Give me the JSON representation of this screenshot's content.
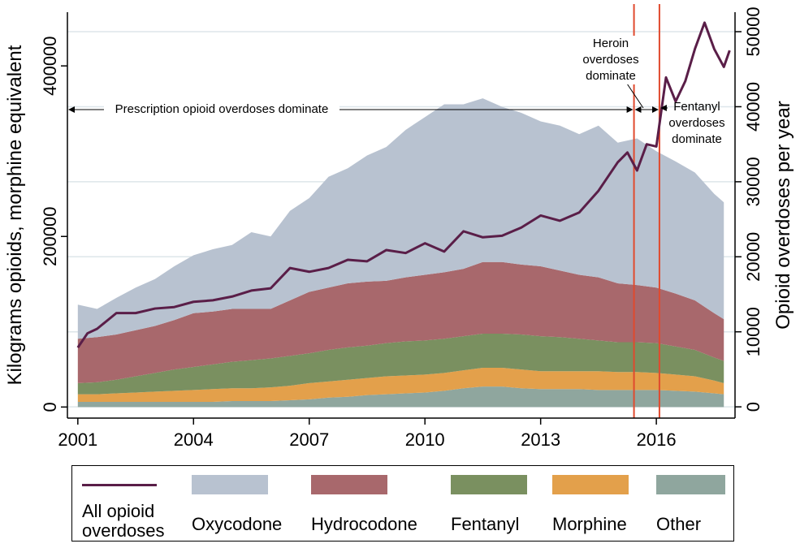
{
  "chart_data": {
    "type": "area",
    "y_label": "Kilograms opioids, morphine equivalent",
    "y2_label": "Opioid overdoses per year",
    "x": [
      2001,
      2001.5,
      2002,
      2002.5,
      2003,
      2003.5,
      2004,
      2004.5,
      2005,
      2005.5,
      2006,
      2006.5,
      2007,
      2007.5,
      2008,
      2008.5,
      2009,
      2009.5,
      2010,
      2010.5,
      2011,
      2011.5,
      2012,
      2012.5,
      2013,
      2013.5,
      2014,
      2014.5,
      2015,
      2015.5,
      2016,
      2016.5,
      2017,
      2017.5,
      2017.75
    ],
    "xlim": [
      2000.73,
      2018.04
    ],
    "xticks": [
      2001,
      2004,
      2007,
      2010,
      2013,
      2016
    ],
    "ylim": [
      -13000,
      463000
    ],
    "yticks": [
      0,
      200000,
      400000
    ],
    "y2lim": [
      -1500,
      52600
    ],
    "y2ticks": [
      0,
      10000,
      20000,
      30000,
      40000,
      50000
    ],
    "grid": true,
    "vlines": [
      2015.42,
      2016.08
    ],
    "vline_color": "#e04a2e",
    "annotations": [
      "Prescription opioid overdoses dominate",
      "Heroin overdoses dominate",
      "Fentanyl overdoses dominate"
    ],
    "series": [
      {
        "name": "All opioid overdoses",
        "type": "line",
        "axis": "y2",
        "color": "#5a1e48",
        "x": [
          2001,
          2001.25,
          2001.5,
          2002,
          2002.5,
          2003,
          2003.5,
          2004,
          2004.5,
          2005,
          2005.5,
          2006,
          2006.5,
          2007,
          2007.5,
          2008,
          2008.5,
          2009,
          2009.5,
          2010,
          2010.5,
          2011,
          2011.5,
          2012,
          2012.5,
          2013,
          2013.5,
          2014,
          2014.5,
          2015,
          2015.25,
          2015.5,
          2015.75,
          2016,
          2016.25,
          2016.5,
          2016.75,
          2017,
          2017.25,
          2017.5,
          2017.75,
          2017.9
        ],
        "values": [
          7900,
          9800,
          10400,
          12500,
          12500,
          13100,
          13300,
          14000,
          14200,
          14700,
          15500,
          15800,
          18500,
          18000,
          18500,
          19600,
          19400,
          20900,
          20500,
          21800,
          20700,
          23400,
          22600,
          22800,
          23900,
          25500,
          24800,
          25900,
          28800,
          32600,
          33900,
          31500,
          35000,
          34700,
          43900,
          40700,
          43400,
          47700,
          51200,
          47700,
          45300,
          47500
        ]
      },
      {
        "name": "Oxycodone",
        "type": "area",
        "color": "#b8c2d0",
        "values": [
          40000,
          33000,
          43000,
          50000,
          55000,
          63000,
          68000,
          73000,
          75000,
          90000,
          85000,
          105000,
          110000,
          130000,
          135000,
          148000,
          157000,
          173000,
          185000,
          197000,
          193000,
          192000,
          182000,
          178000,
          170000,
          170000,
          165000,
          178000,
          165000,
          172000,
          160000,
          155000,
          150000,
          140000,
          137000
        ]
      },
      {
        "name": "Hydrocodone",
        "type": "area",
        "color": "#a8686c",
        "values": [
          52000,
          53000,
          53000,
          54000,
          55000,
          58000,
          63000,
          62000,
          62000,
          60000,
          58000,
          65000,
          72000,
          73000,
          75000,
          75000,
          73000,
          75000,
          77000,
          78000,
          79000,
          84000,
          84000,
          82000,
          82000,
          78000,
          75000,
          74000,
          69000,
          67000,
          65000,
          62000,
          58000,
          52000,
          49000
        ]
      },
      {
        "name": "Fentanyl",
        "type": "area",
        "color": "#7a9060",
        "values": [
          13000,
          14000,
          16000,
          19000,
          22000,
          25000,
          27000,
          29000,
          31000,
          33000,
          34000,
          35000,
          35000,
          37000,
          38000,
          38000,
          39000,
          40000,
          40000,
          40000,
          40000,
          40000,
          40000,
          41000,
          41000,
          40000,
          38000,
          36000,
          35000,
          35000,
          35000,
          33000,
          31000,
          27000,
          26000
        ]
      },
      {
        "name": "Morphine",
        "type": "area",
        "color": "#e3a04b",
        "values": [
          9000,
          9000,
          10000,
          11000,
          12000,
          13000,
          14000,
          15000,
          15000,
          15000,
          16000,
          17000,
          19000,
          19000,
          20000,
          20000,
          21000,
          21000,
          21000,
          21000,
          21000,
          22000,
          22000,
          22000,
          21000,
          21000,
          21000,
          22000,
          21000,
          21000,
          20000,
          19000,
          18000,
          15000,
          13000
        ]
      },
      {
        "name": "Other",
        "type": "area",
        "color": "#8fa69e",
        "values": [
          6000,
          6000,
          6000,
          6000,
          6000,
          6000,
          6000,
          6000,
          7000,
          7000,
          7000,
          8000,
          9000,
          11000,
          12000,
          14000,
          15000,
          16000,
          17000,
          19000,
          22000,
          24000,
          24000,
          22000,
          21000,
          21000,
          21000,
          20000,
          20000,
          20000,
          20000,
          19000,
          18000,
          16000,
          15000
        ]
      }
    ]
  }
}
